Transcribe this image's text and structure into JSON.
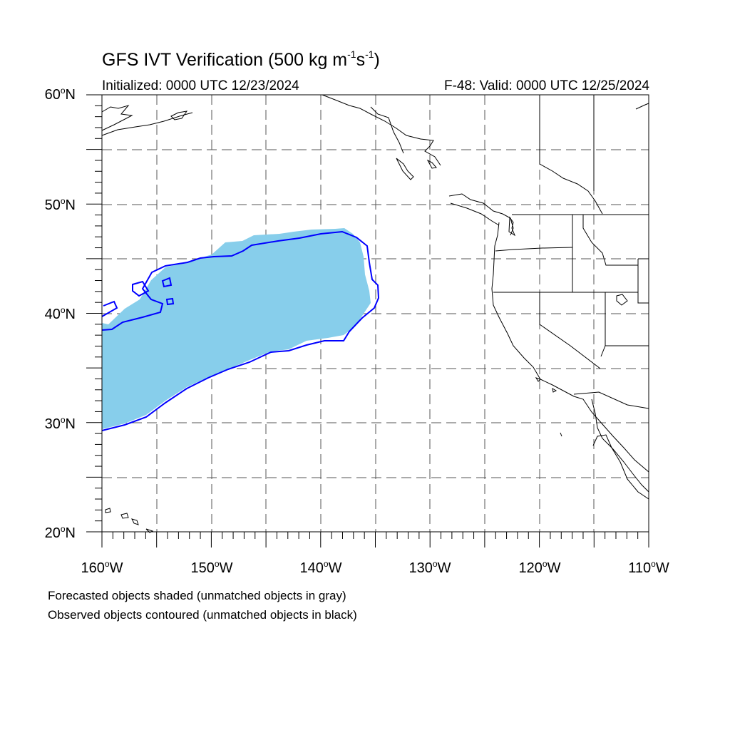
{
  "header": {
    "title_main": "GFS IVT Verification (500 kg m",
    "title_exp1": "-1",
    "title_mid": "s",
    "title_exp2": "-1",
    "title_end": ")",
    "initialized": "Initialized: 0000 UTC 12/23/2024",
    "valid": "F-48: Valid: 0000 UTC 12/25/2024"
  },
  "axes": {
    "degree_symbol": "o",
    "lat_labels": [
      "60",
      "50",
      "40",
      "30",
      "20"
    ],
    "lat_suffix": "N",
    "lon_labels": [
      "160",
      "150",
      "140",
      "130",
      "120",
      "110"
    ],
    "lon_suffix": "W",
    "lat_range": [
      20,
      60
    ],
    "lon_range": [
      -160,
      -110
    ],
    "grid_spacing_deg": 5,
    "grid": true
  },
  "legend": {
    "line1": "Forecasted objects shaded (unmatched objects in gray)",
    "line2": "Observed objects contoured (unmatched objects in black)"
  },
  "colors": {
    "forecast_fill": "#87CEEB",
    "observed_contour": "#0000FF",
    "coastline": "#000000",
    "grid": "#555555"
  }
}
